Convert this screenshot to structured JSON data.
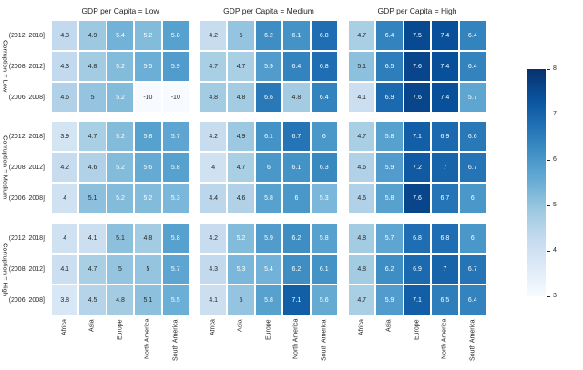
{
  "chart_data": {
    "type": "heatmap",
    "facet_col_label": "GDP per Capita",
    "facet_row_label": "Corruption",
    "col_titles": [
      "GDP per Capita = Low",
      "GDP per Capita = Medium",
      "GDP per Capita = High"
    ],
    "row_titles": [
      "Corruption = Low",
      "Corruption = Medium",
      "Corruption = High"
    ],
    "x_categories": [
      "Africa",
      "Asia",
      "Europe",
      "North America",
      "South America"
    ],
    "y_categories": [
      "(2012, 2018]",
      "(2008, 2012]",
      "(2006, 2008]"
    ],
    "colormap": "Blues",
    "color_stops": [
      "#f7fbff",
      "#deebf7",
      "#c6dbef",
      "#9ecae1",
      "#6baed6",
      "#4292c6",
      "#2171b5",
      "#08519c",
      "#08306b"
    ],
    "vmin": 3,
    "vmax": 8,
    "colorbar_ticks": [
      8,
      7,
      6,
      5,
      4,
      3
    ],
    "white_text_threshold": 5.2,
    "text_colors": {
      "dark": "#262626",
      "light": "#ffffff"
    },
    "legend_position": "right",
    "grid": false,
    "panels": [
      {
        "gdp": "Low",
        "corruption": "Low",
        "values": [
          [
            4.3,
            4.9,
            5.4,
            5.2,
            5.8
          ],
          [
            4.3,
            4.8,
            5.2,
            5.5,
            5.9
          ],
          [
            4.6,
            5.0,
            5.2,
            -10,
            -10
          ]
        ]
      },
      {
        "gdp": "Medium",
        "corruption": "Low",
        "values": [
          [
            4.2,
            5.0,
            6.2,
            6.1,
            6.8
          ],
          [
            4.7,
            4.7,
            5.9,
            6.4,
            6.8
          ],
          [
            4.8,
            4.8,
            6.6,
            4.8,
            6.4
          ]
        ]
      },
      {
        "gdp": "High",
        "corruption": "Low",
        "values": [
          [
            4.7,
            6.4,
            7.5,
            7.4,
            6.4
          ],
          [
            5.1,
            6.5,
            7.6,
            7.4,
            6.4
          ],
          [
            4.1,
            6.9,
            7.6,
            7.4,
            5.7
          ]
        ]
      },
      {
        "gdp": "Low",
        "corruption": "Medium",
        "values": [
          [
            3.9,
            4.7,
            5.2,
            5.8,
            5.7
          ],
          [
            4.2,
            4.6,
            5.2,
            5.6,
            5.8
          ],
          [
            4.0,
            5.1,
            5.2,
            5.2,
            5.3
          ]
        ]
      },
      {
        "gdp": "Medium",
        "corruption": "Medium",
        "values": [
          [
            4.2,
            4.9,
            6.1,
            6.7,
            6.0
          ],
          [
            4.0,
            4.7,
            6.0,
            6.1,
            6.3
          ],
          [
            4.4,
            4.6,
            5.8,
            6.0,
            5.3
          ]
        ]
      },
      {
        "gdp": "High",
        "corruption": "Medium",
        "values": [
          [
            4.7,
            5.8,
            7.1,
            6.9,
            6.6
          ],
          [
            4.6,
            5.9,
            7.2,
            7.0,
            6.7
          ],
          [
            4.6,
            5.8,
            7.6,
            6.7,
            6.0
          ]
        ]
      },
      {
        "gdp": "Low",
        "corruption": "High",
        "values": [
          [
            4.0,
            4.1,
            5.1,
            4.8,
            5.8
          ],
          [
            4.1,
            4.7,
            5.0,
            5.0,
            5.7
          ],
          [
            3.8,
            4.5,
            4.8,
            5.1,
            5.5
          ]
        ]
      },
      {
        "gdp": "Medium",
        "corruption": "High",
        "values": [
          [
            4.2,
            5.2,
            5.9,
            6.2,
            5.8
          ],
          [
            4.3,
            5.3,
            5.4,
            6.2,
            6.1
          ],
          [
            4.1,
            5.0,
            5.8,
            7.1,
            5.6
          ]
        ]
      },
      {
        "gdp": "High",
        "corruption": "High",
        "values": [
          [
            4.8,
            5.7,
            6.8,
            6.8,
            6.0
          ],
          [
            4.8,
            6.2,
            6.9,
            7.0,
            6.7
          ],
          [
            4.7,
            5.9,
            7.1,
            6.5,
            6.4
          ]
        ]
      }
    ]
  }
}
